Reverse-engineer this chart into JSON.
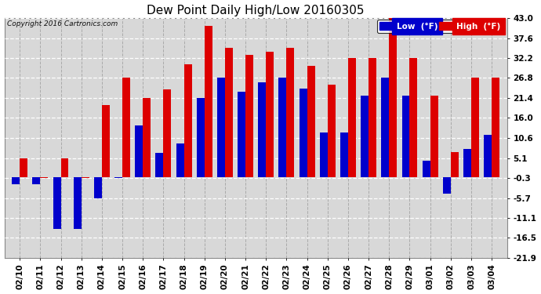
{
  "title": "Dew Point Daily High/Low 20160305",
  "copyright": "Copyright 2016 Cartronics.com",
  "dates": [
    "02/10",
    "02/11",
    "02/12",
    "02/13",
    "02/14",
    "02/15",
    "02/16",
    "02/17",
    "02/18",
    "02/19",
    "02/20",
    "02/21",
    "02/22",
    "02/23",
    "02/24",
    "02/25",
    "02/26",
    "02/27",
    "02/28",
    "02/29",
    "03/01",
    "03/02",
    "03/03",
    "03/04"
  ],
  "high": [
    5.1,
    -0.3,
    5.1,
    -0.3,
    19.4,
    27.0,
    21.4,
    23.8,
    30.4,
    41.0,
    35.0,
    33.0,
    34.0,
    35.0,
    30.0,
    25.0,
    32.2,
    32.2,
    43.0,
    32.2,
    22.0,
    6.8,
    26.8,
    27.0
  ],
  "low": [
    -2.0,
    -2.0,
    -14.0,
    -14.0,
    -5.7,
    -0.3,
    14.0,
    6.5,
    9.0,
    21.4,
    27.0,
    23.0,
    25.6,
    26.8,
    24.0,
    12.0,
    12.0,
    22.0,
    26.8,
    22.0,
    4.5,
    -4.5,
    7.5,
    11.5
  ],
  "high_color": "#dd0000",
  "low_color": "#0000cc",
  "plot_bg_color": "#d8d8d8",
  "fig_bg_color": "#ffffff",
  "ylim_low": -21.9,
  "ylim_high": 43.0,
  "yticks": [
    -21.9,
    -16.5,
    -11.1,
    -5.7,
    -0.3,
    5.1,
    10.6,
    16.0,
    21.4,
    26.8,
    32.2,
    37.6,
    43.0
  ],
  "bar_width": 0.38,
  "title_fontsize": 11,
  "tick_fontsize": 7.5,
  "copyright_fontsize": 6.5
}
